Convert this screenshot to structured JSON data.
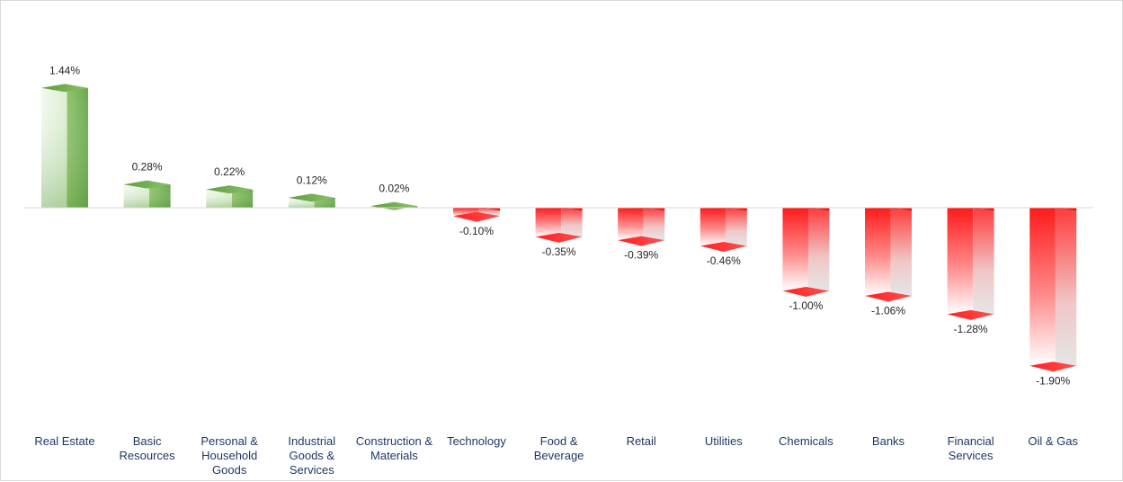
{
  "chart_data": {
    "type": "bar",
    "categories": [
      "Real Estate",
      "Basic Resources",
      "Personal & Household Goods",
      "Industrial Goods & Services",
      "Construction & Materials",
      "Technology",
      "Food & Beverage",
      "Retail",
      "Utilities",
      "Chemicals",
      "Banks",
      "Financial Services",
      "Oil & Gas"
    ],
    "category_lines": [
      [
        "Real Estate"
      ],
      [
        "Basic",
        "Resources"
      ],
      [
        "Personal &",
        "Household",
        "Goods"
      ],
      [
        "Industrial",
        "Goods &",
        "Services"
      ],
      [
        "Construction &",
        "Materials"
      ],
      [
        "Technology"
      ],
      [
        "Food &",
        "Beverage"
      ],
      [
        "Retail"
      ],
      [
        "Utilities"
      ],
      [
        "Chemicals"
      ],
      [
        "Banks"
      ],
      [
        "Financial",
        "Services"
      ],
      [
        "Oil & Gas"
      ]
    ],
    "values": [
      1.44,
      0.28,
      0.22,
      0.12,
      0.02,
      -0.1,
      -0.35,
      -0.39,
      -0.46,
      -1.0,
      -1.06,
      -1.28,
      -1.9
    ],
    "value_labels": [
      "1.44%",
      "0.28%",
      "0.22%",
      "0.12%",
      "0.02%",
      "-0.10%",
      "-0.35%",
      "-0.39%",
      "-0.46%",
      "-1.00%",
      "-1.06%",
      "-1.28%",
      "-1.90%"
    ],
    "ylim": [
      -2.0,
      1.6
    ],
    "grid": false,
    "legend": "none",
    "colors": {
      "positive": "#70ad47",
      "negative": "#ff0000",
      "baseline": "#d9d9d9",
      "category_text": "#1f3864",
      "value_text": "#262626"
    }
  }
}
